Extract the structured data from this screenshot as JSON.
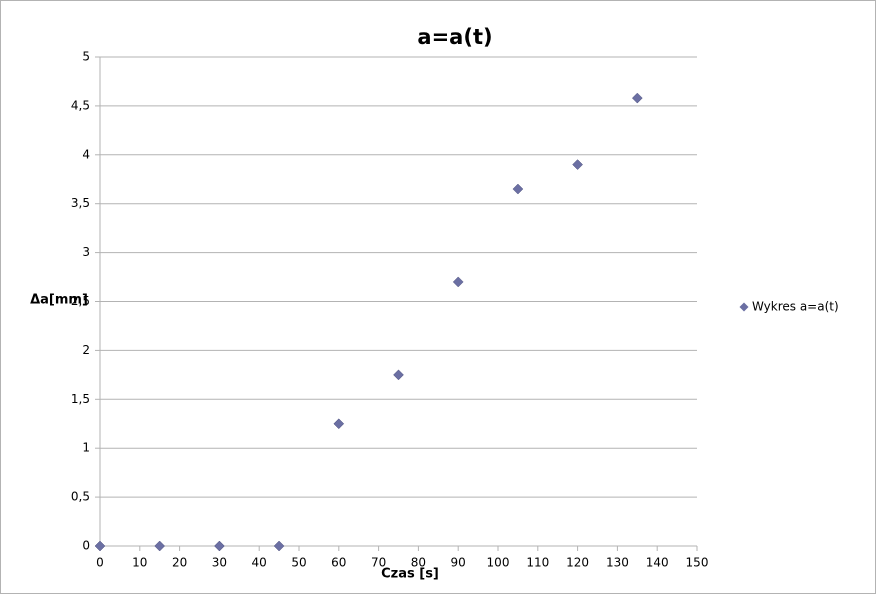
{
  "chart_data": {
    "type": "scatter",
    "title": "a=a(t)",
    "x_label": "Czas [s]",
    "y_label": "Δa[mm]",
    "series": [
      {
        "name": "Wykres a=a(t)",
        "color": "#6b6fa3",
        "x": [
          0,
          15,
          30,
          45,
          60,
          75,
          90,
          105,
          120,
          135
        ],
        "values": [
          0,
          0,
          0,
          0,
          1.25,
          1.75,
          2.7,
          3.65,
          3.9,
          4.58
        ]
      }
    ],
    "xlim": [
      0,
      150
    ],
    "xticks": [
      0,
      10,
      20,
      30,
      40,
      50,
      60,
      70,
      80,
      90,
      100,
      110,
      120,
      130,
      140,
      150
    ],
    "ylim": [
      0,
      5
    ],
    "yticks": [
      0,
      {
        "value": 0.5,
        "label": "0,5"
      },
      1,
      {
        "value": 1.5,
        "label": "1,5"
      },
      2,
      {
        "value": 2.5,
        "label": "2,5"
      },
      3,
      {
        "value": 3.5,
        "label": "3,5"
      },
      4,
      {
        "value": 4.5,
        "label": "4,5"
      },
      5
    ],
    "grid": true,
    "legend": "right"
  }
}
